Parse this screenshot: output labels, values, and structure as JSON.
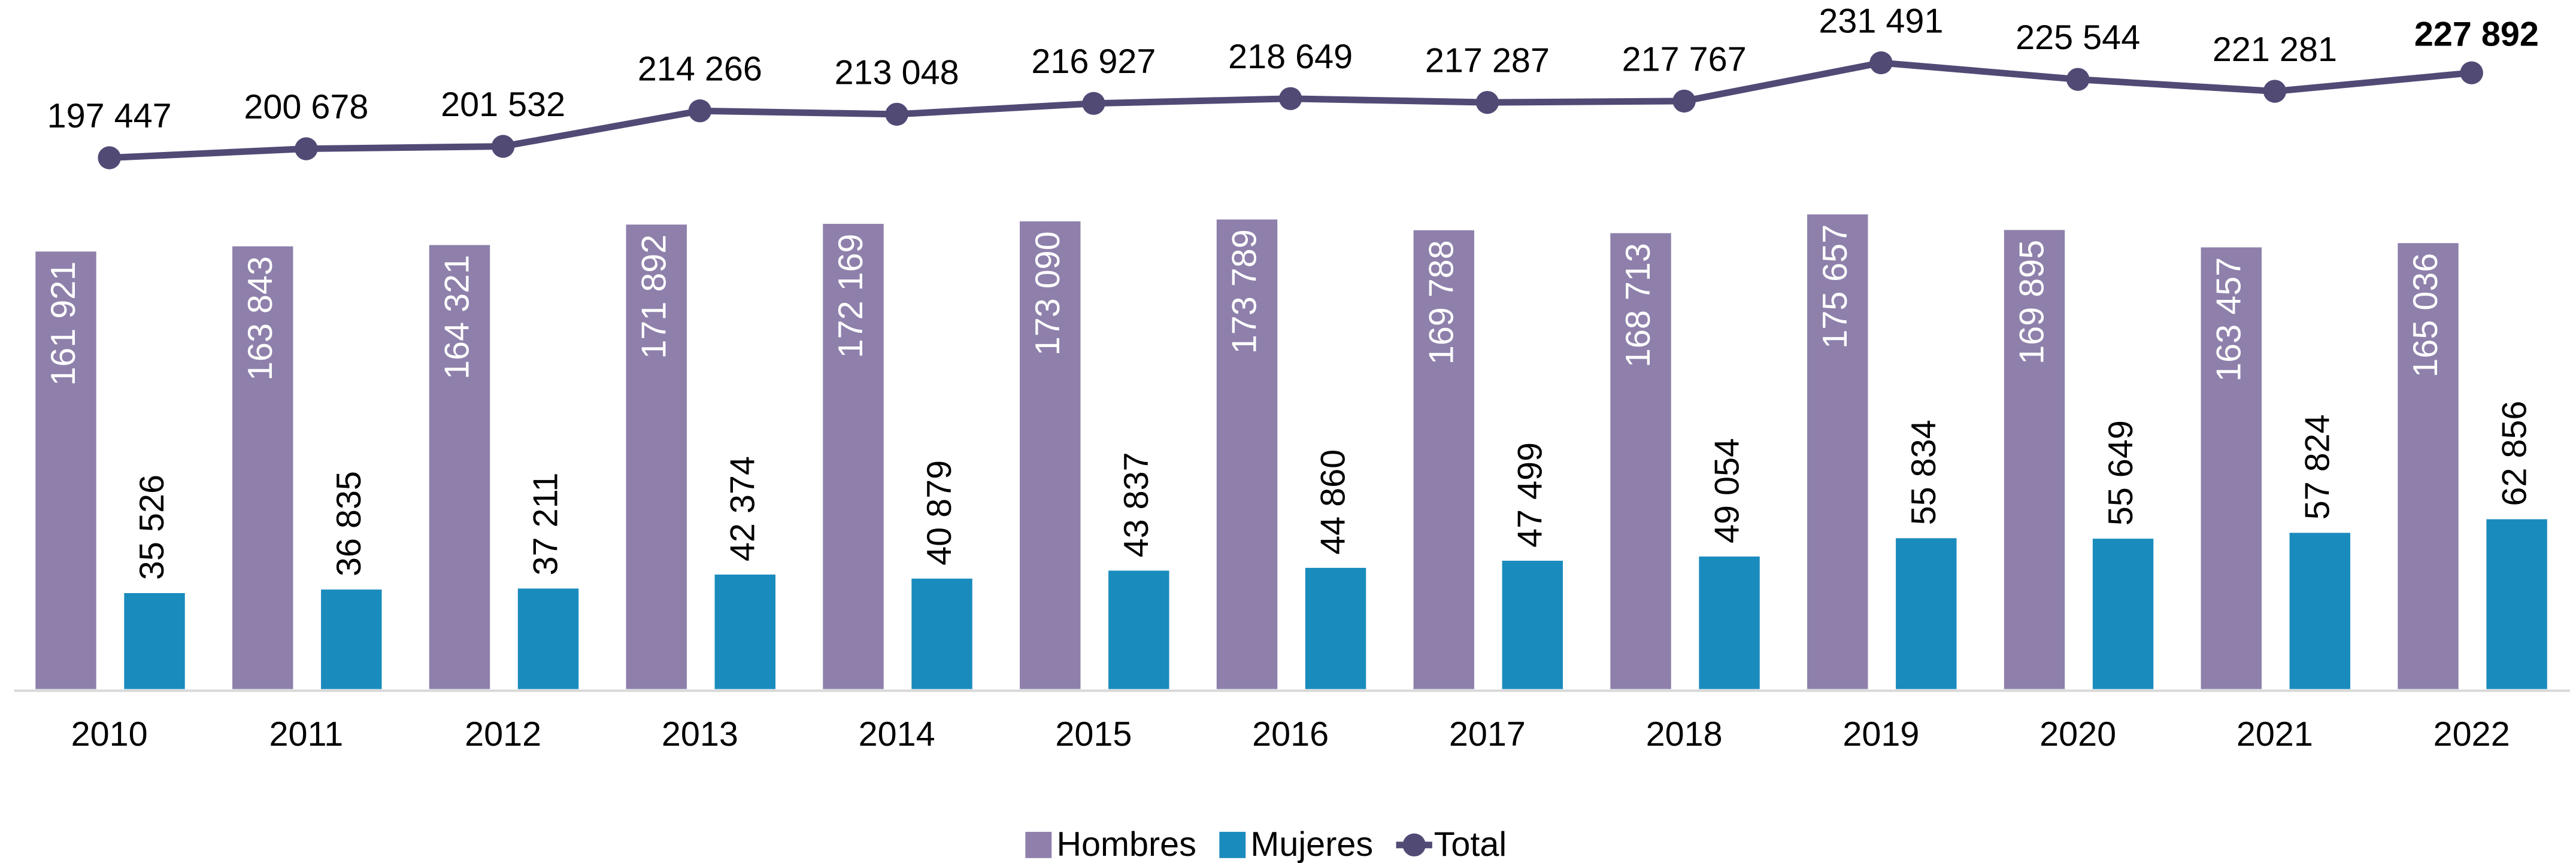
{
  "chart_data": {
    "type": "bar",
    "categories": [
      "2010",
      "2011",
      "2012",
      "2013",
      "2014",
      "2015",
      "2016",
      "2017",
      "2018",
      "2019",
      "2020",
      "2021",
      "2022"
    ],
    "ylim": [
      0,
      255000
    ],
    "y2lim": [
      7000,
      254000
    ],
    "legend": "bottom",
    "series": [
      {
        "name": "Hombres",
        "type": "bar",
        "color": "#8e80ab",
        "values": [
          161921,
          163843,
          164321,
          171892,
          172169,
          173090,
          173789,
          169788,
          168713,
          175657,
          169895,
          163457,
          165036
        ],
        "value_labels": [
          "161 921",
          "163 843",
          "164 321",
          "171 892",
          "172 169",
          "173 090",
          "173 789",
          "169 788",
          "168 713",
          "175 657",
          "169 895",
          "163 457",
          "165 036"
        ]
      },
      {
        "name": "Mujeres",
        "type": "bar",
        "color": "#1a8bbd",
        "values": [
          35526,
          36835,
          37211,
          42374,
          40879,
          43837,
          44860,
          47499,
          49054,
          55834,
          55649,
          57824,
          62856
        ],
        "value_labels": [
          "35 526",
          "36 835",
          "37 211",
          "42 374",
          "40 879",
          "43 837",
          "44 860",
          "47 499",
          "49 054",
          "55 834",
          "55 649",
          "57 824",
          "62 856"
        ]
      },
      {
        "name": "Total",
        "type": "line",
        "axis": "y2",
        "color": "#514a75",
        "values": [
          197447,
          200678,
          201532,
          214266,
          213048,
          216927,
          218649,
          217287,
          217767,
          231491,
          225544,
          221281,
          227892
        ],
        "value_labels": [
          "197 447",
          "200 678",
          "201 532",
          "214 266",
          "213 048",
          "216 927",
          "218 649",
          "217 287",
          "217 767",
          "231 491",
          "225 544",
          "221 281",
          "227 892"
        ]
      }
    ]
  }
}
